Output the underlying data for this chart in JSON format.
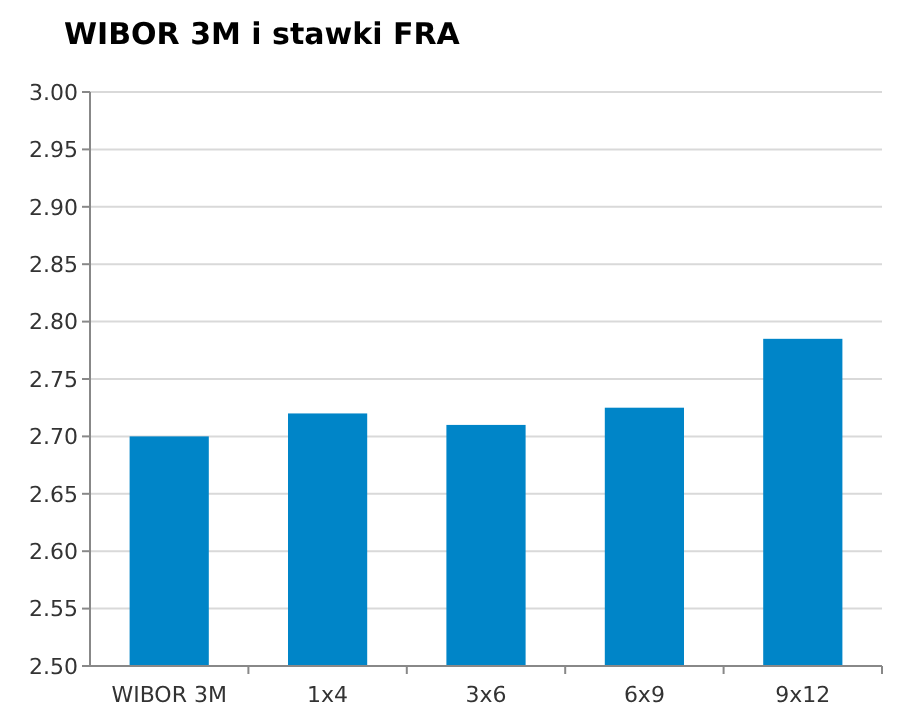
{
  "chart_data": {
    "type": "bar",
    "title": "WIBOR 3M i stawki FRA",
    "categories": [
      "WIBOR 3M",
      "1x4",
      "3x6",
      "6x9",
      "9x12"
    ],
    "values": [
      2.7,
      2.72,
      2.71,
      2.725,
      2.785
    ],
    "color": "#0085c8",
    "ylim": [
      2.5,
      3.0
    ],
    "yticks": [
      {
        "value": 2.5,
        "label": "2.50"
      },
      {
        "value": 2.55,
        "label": "2.55"
      },
      {
        "value": 2.6,
        "label": "2.60"
      },
      {
        "value": 2.65,
        "label": "2.65"
      },
      {
        "value": 2.7,
        "label": "2.70"
      },
      {
        "value": 2.75,
        "label": "2.75"
      },
      {
        "value": 2.8,
        "label": "2.80"
      },
      {
        "value": 2.85,
        "label": "2.85"
      },
      {
        "value": 2.9,
        "label": "2.90"
      },
      {
        "value": 2.95,
        "label": "2.95"
      },
      {
        "value": 3.0,
        "label": "3.00"
      }
    ],
    "grid": "y"
  }
}
